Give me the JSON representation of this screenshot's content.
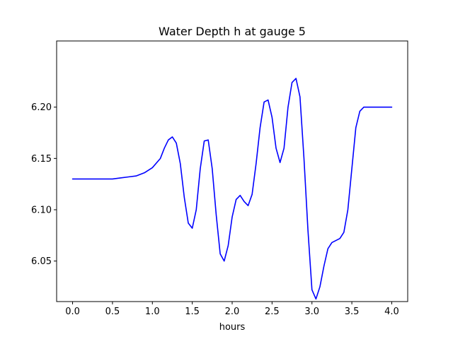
{
  "chart_data": {
    "type": "line",
    "title": "Water Depth h at gauge 5",
    "xlabel": "hours",
    "ylabel": "",
    "xlim": [
      -0.2,
      4.2
    ],
    "ylim": [
      6.0105,
      6.2645
    ],
    "xticks": [
      0.0,
      0.5,
      1.0,
      1.5,
      2.0,
      2.5,
      3.0,
      3.5,
      4.0
    ],
    "xtick_labels": [
      "0.0",
      "0.5",
      "1.0",
      "1.5",
      "2.0",
      "2.5",
      "3.0",
      "3.5",
      "4.0"
    ],
    "yticks": [
      6.05,
      6.1,
      6.15,
      6.2
    ],
    "ytick_labels": [
      "6.05",
      "6.10",
      "6.15",
      "6.20"
    ],
    "grid": false,
    "series": [
      {
        "color": "#0000ff",
        "x": [
          0.0,
          0.2,
          0.4,
          0.5,
          0.6,
          0.7,
          0.8,
          0.9,
          1.0,
          1.1,
          1.15,
          1.2,
          1.25,
          1.3,
          1.35,
          1.4,
          1.45,
          1.5,
          1.55,
          1.6,
          1.65,
          1.7,
          1.75,
          1.8,
          1.85,
          1.9,
          1.95,
          2.0,
          2.05,
          2.1,
          2.15,
          2.2,
          2.25,
          2.3,
          2.35,
          2.4,
          2.45,
          2.5,
          2.55,
          2.6,
          2.65,
          2.7,
          2.75,
          2.8,
          2.85,
          2.9,
          2.95,
          3.0,
          3.05,
          3.1,
          3.15,
          3.2,
          3.25,
          3.3,
          3.35,
          3.4,
          3.45,
          3.5,
          3.55,
          3.6,
          3.65,
          3.7,
          3.75,
          3.8,
          3.85,
          3.9,
          3.95,
          4.0
        ],
        "y": [
          6.13,
          6.13,
          6.13,
          6.13,
          6.131,
          6.132,
          6.133,
          6.136,
          6.141,
          6.15,
          6.16,
          6.168,
          6.171,
          6.165,
          6.145,
          6.112,
          6.087,
          6.082,
          6.1,
          6.14,
          6.167,
          6.168,
          6.14,
          6.095,
          6.057,
          6.05,
          6.065,
          6.093,
          6.11,
          6.114,
          6.108,
          6.104,
          6.115,
          6.145,
          6.18,
          6.205,
          6.207,
          6.19,
          6.16,
          6.146,
          6.16,
          6.2,
          6.224,
          6.228,
          6.21,
          6.15,
          6.08,
          6.022,
          6.013,
          6.025,
          6.045,
          6.062,
          6.068,
          6.07,
          6.072,
          6.078,
          6.1,
          6.14,
          6.18,
          6.196,
          6.2,
          6.2,
          6.2,
          6.2,
          6.2,
          6.2,
          6.2,
          6.2
        ]
      }
    ]
  }
}
